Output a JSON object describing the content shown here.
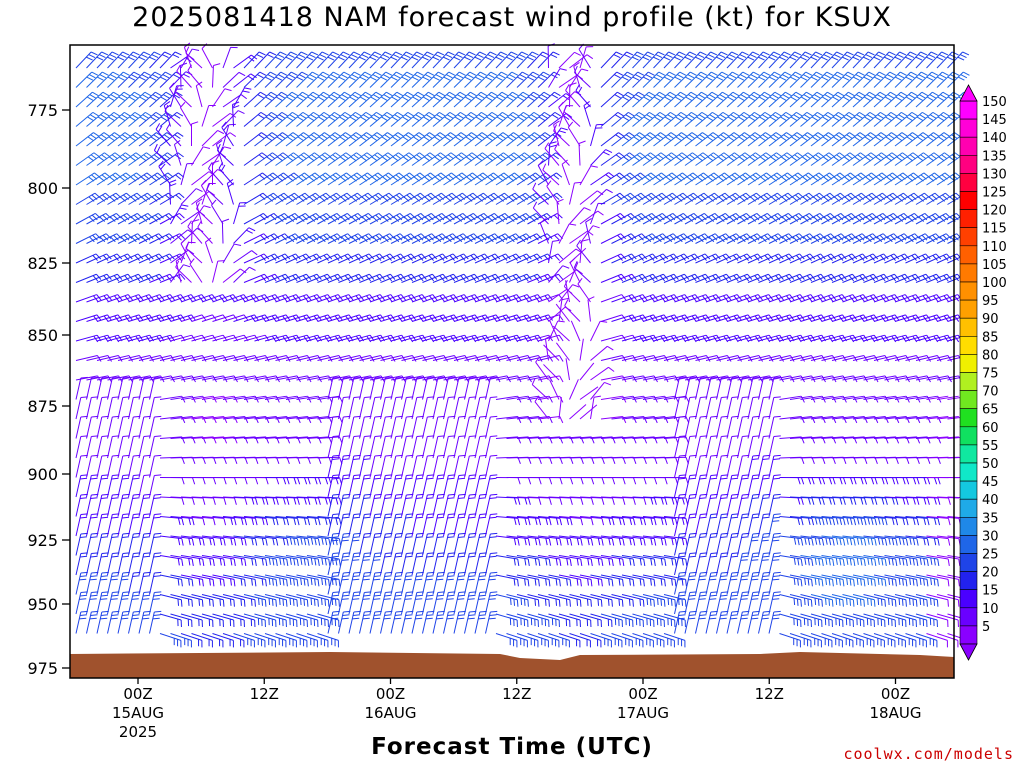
{
  "chart_data": {
    "type": "wind-barb-time-height",
    "title": "2025081418 NAM forecast wind profile (kt) for KSUX",
    "xlabel": "Forecast Time (UTC)",
    "credit": "coolwx.com/models",
    "y_axis": {
      "label": "",
      "ticks": [
        "775",
        "800",
        "825",
        "850",
        "875",
        "900",
        "925",
        "950",
        "975"
      ],
      "range_hpa": [
        955,
        980
      ],
      "inverted": true
    },
    "x_axis": {
      "ticks": [
        {
          "hour": 6,
          "label": "00Z",
          "date": "15AUG",
          "year": "2025"
        },
        {
          "hour": 18,
          "label": "12Z",
          "date": "",
          "year": ""
        },
        {
          "hour": 30,
          "label": "00Z",
          "date": "16AUG",
          "year": ""
        },
        {
          "hour": 42,
          "label": "12Z",
          "date": "",
          "year": ""
        },
        {
          "hour": 54,
          "label": "00Z",
          "date": "17AUG",
          "year": ""
        },
        {
          "hour": 66,
          "label": "12Z",
          "date": "",
          "year": ""
        },
        {
          "hour": 78,
          "label": "00Z",
          "date": "18AUG",
          "year": ""
        }
      ],
      "forecast_hours": [
        0,
        84
      ]
    },
    "colorbar": {
      "levels": [
        5,
        10,
        15,
        20,
        25,
        30,
        35,
        40,
        45,
        50,
        55,
        60,
        65,
        70,
        75,
        80,
        85,
        90,
        95,
        100,
        105,
        110,
        115,
        120,
        125,
        130,
        135,
        140,
        145,
        150
      ],
      "colors": [
        "#8a00ff",
        "#6a00ff",
        "#4a00ff",
        "#2222ee",
        "#1f44e8",
        "#1f66e8",
        "#1f88e8",
        "#1faae8",
        "#14c8e0",
        "#10e8c8",
        "#10e8a0",
        "#10e060",
        "#20e020",
        "#70e820",
        "#b0f020",
        "#f0f000",
        "#ffdd00",
        "#ffc000",
        "#ffa000",
        "#ff9000",
        "#ff7a00",
        "#ff6000",
        "#ff4000",
        "#ff2000",
        "#ff0000",
        "#ff0040",
        "#ff0080",
        "#ff00b0",
        "#ff00d8",
        "#ff00ff"
      ]
    },
    "ground_color": "#a0522d",
    "wind_field_summary": "Winds mostly 15-35 kt (blue) through the column, strongest ~45-50 kt near 920-930 hPa around hours 72 and 21; light (<10 kt, purple) near hours 9-16, 44-50 and after hour 78 near the surface."
  }
}
